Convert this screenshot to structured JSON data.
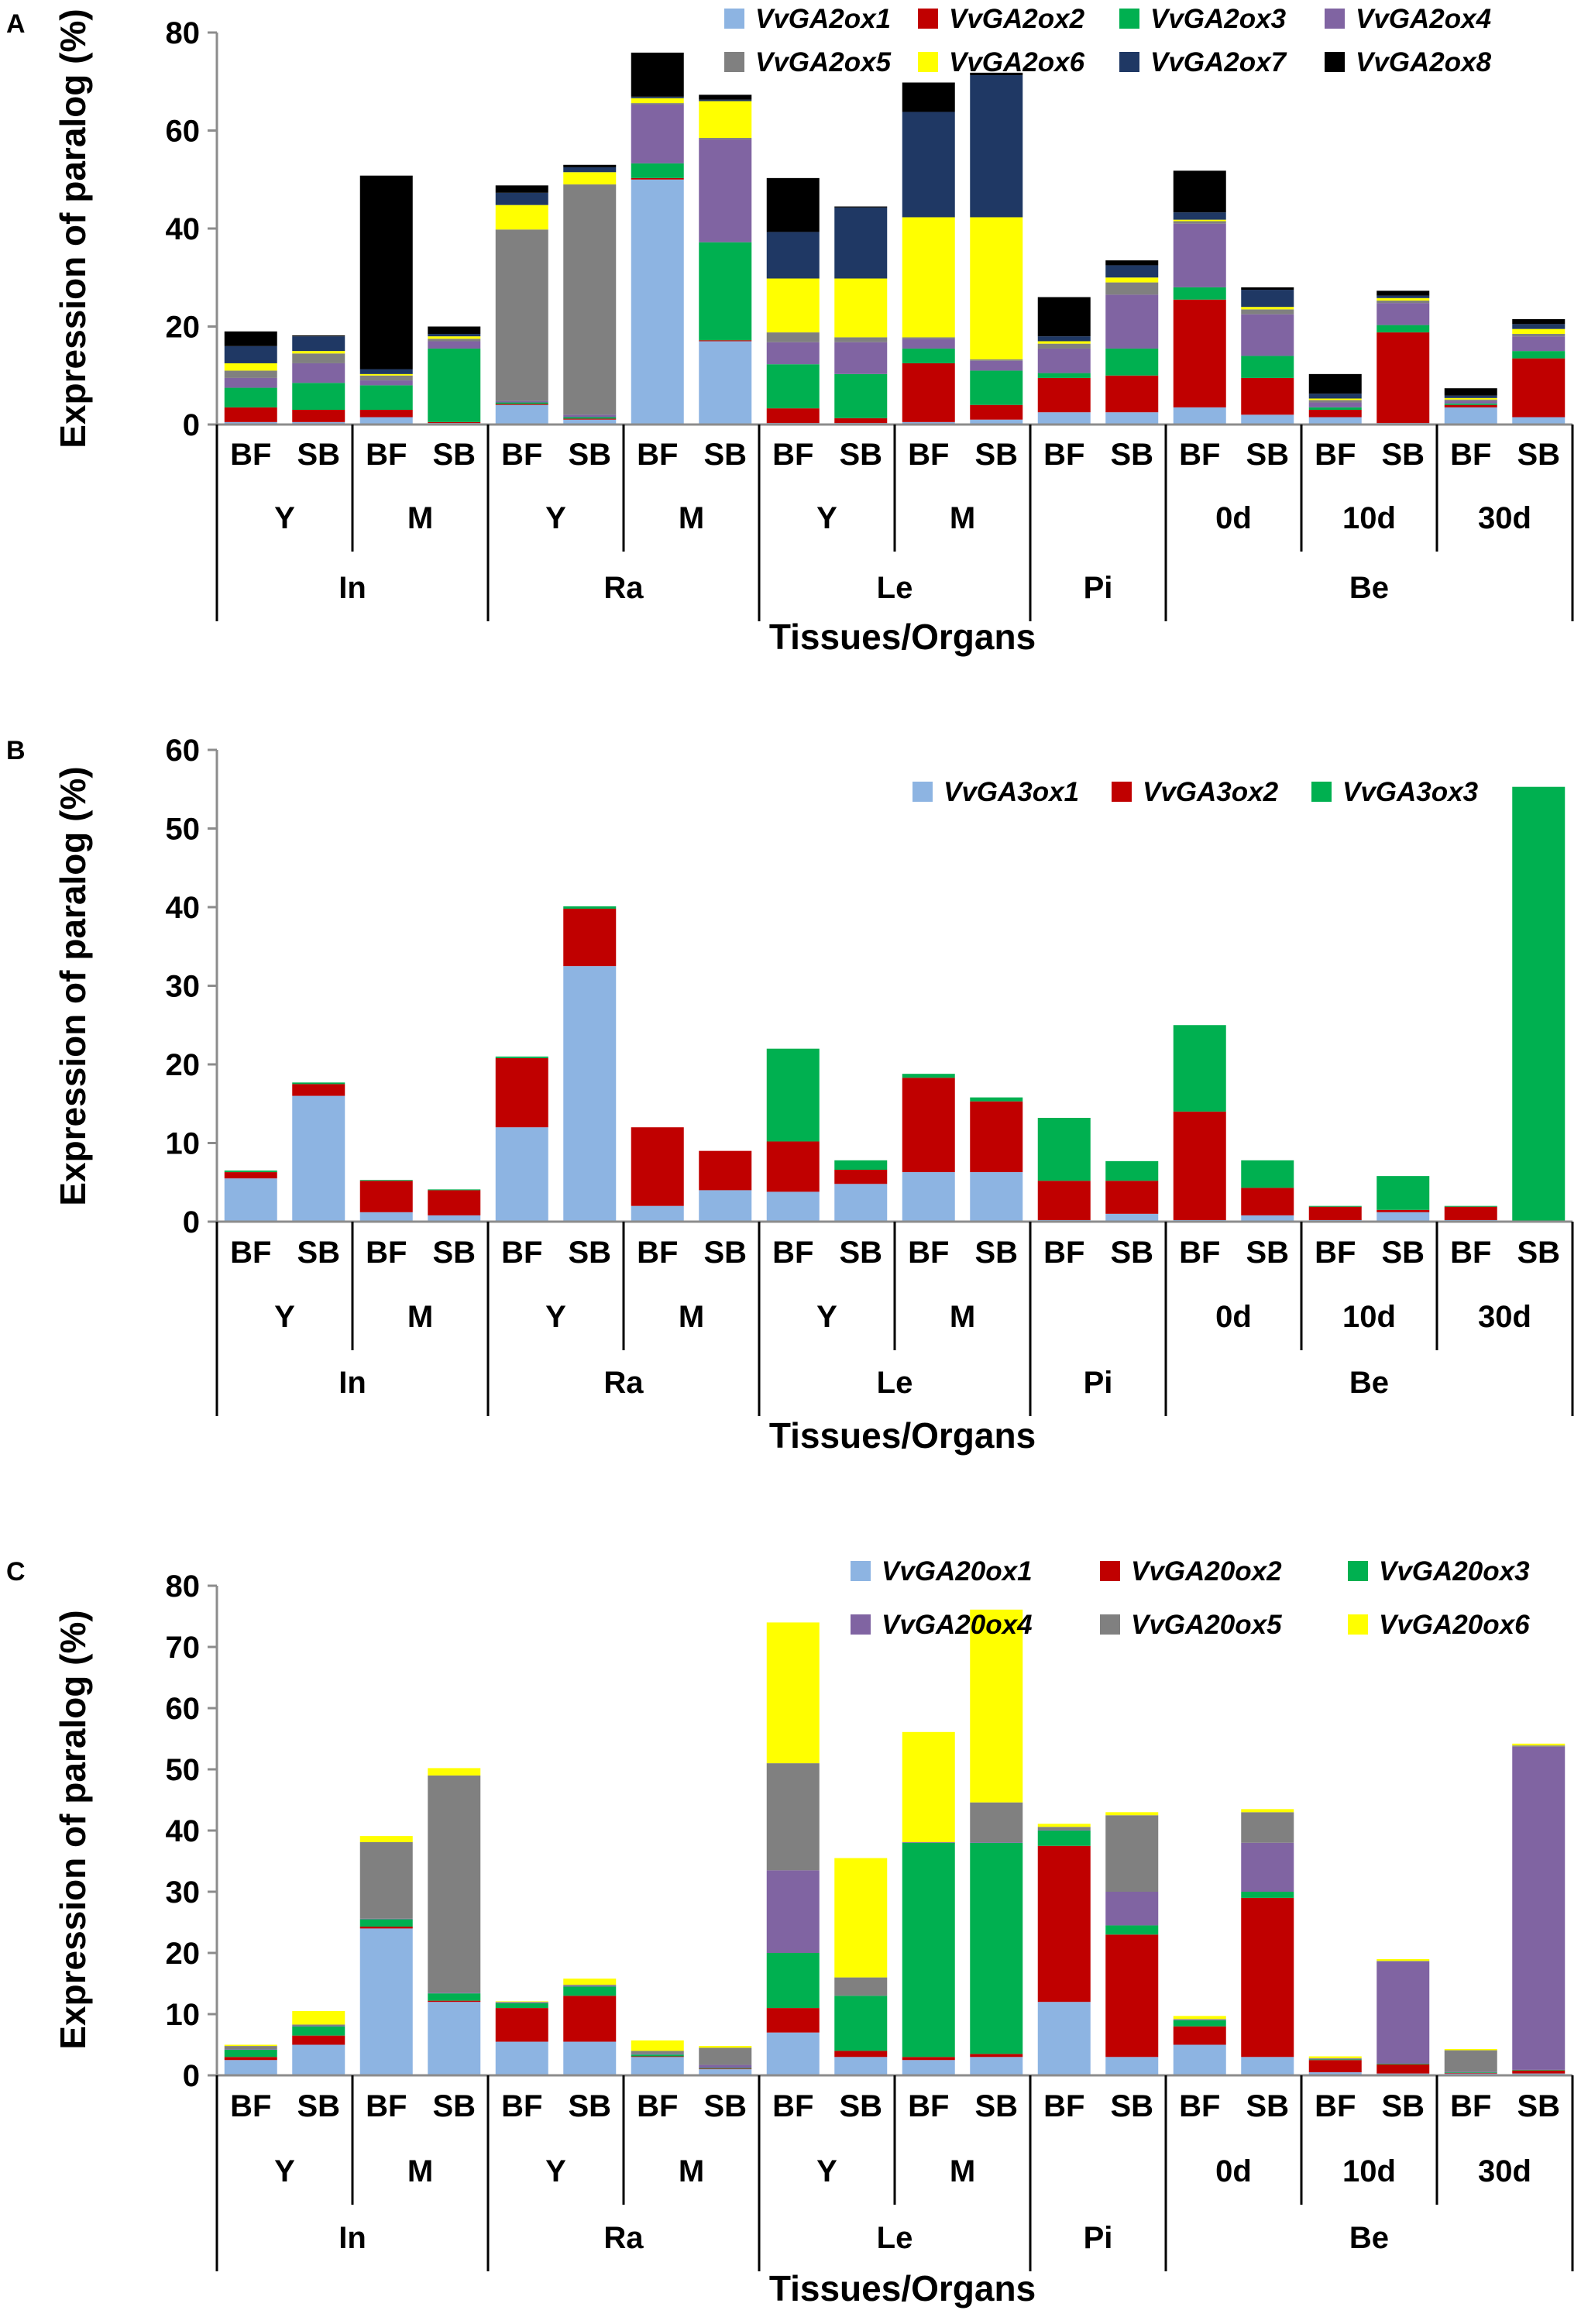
{
  "chart_data": [
    {
      "type": "bar",
      "stacked": true,
      "panel": "A",
      "ylabel": "Expression of paralog (%)",
      "xlabel": "Tissues/Organs",
      "ylim": [
        0,
        80
      ],
      "yticks": [
        0,
        20,
        40,
        60,
        80
      ],
      "legend_position": "top-right",
      "categories": [
        "BF",
        "SB",
        "BF",
        "SB",
        "BF",
        "SB",
        "BF",
        "SB",
        "BF",
        "SB",
        "BF",
        "SB",
        "BF",
        "SB",
        "BF",
        "SB",
        "BF",
        "SB",
        "BF",
        "SB"
      ],
      "stage_labels": [
        "Y",
        "M",
        "Y",
        "M",
        "Y",
        "M",
        "",
        "0d",
        "10d",
        "30d"
      ],
      "stage_spans": [
        [
          0,
          2
        ],
        [
          2,
          4
        ],
        [
          4,
          6
        ],
        [
          6,
          8
        ],
        [
          8,
          10
        ],
        [
          10,
          12
        ],
        [
          12,
          14
        ],
        [
          14,
          16
        ],
        [
          16,
          18
        ],
        [
          18,
          20
        ]
      ],
      "organ_labels": [
        "In",
        "Ra",
        "Le",
        "Pi",
        "Be"
      ],
      "organ_spans": [
        [
          0,
          4
        ],
        [
          4,
          8
        ],
        [
          8,
          12
        ],
        [
          12,
          14
        ],
        [
          14,
          20
        ]
      ],
      "series": [
        {
          "name": "VvGA2ox1",
          "color": "#8db4e2",
          "values": [
            0.5,
            0.5,
            1.5,
            0.3,
            4,
            1,
            50,
            17,
            0.3,
            0.3,
            0.5,
            1,
            2.5,
            2.5,
            3.5,
            2,
            1.5,
            0.3,
            3.5,
            1.5
          ]
        },
        {
          "name": "VvGA2ox2",
          "color": "#c00000",
          "values": [
            3,
            2.5,
            1.5,
            0.2,
            0.2,
            0.2,
            0.3,
            0.2,
            3,
            1,
            12,
            3,
            7,
            7.5,
            22,
            7.5,
            1.5,
            18.5,
            0.5,
            12
          ]
        },
        {
          "name": "VvGA2ox3",
          "color": "#00b050",
          "values": [
            4,
            5.5,
            5,
            15,
            0.3,
            0.3,
            3,
            20,
            9,
            9,
            3,
            7,
            1,
            5.5,
            2.5,
            4.5,
            0.5,
            1.5,
            0.3,
            1.5
          ]
        },
        {
          "name": "VvGA2ox4",
          "color": "#8064a2",
          "values": [
            2,
            4,
            1,
            1.5,
            0.3,
            0.5,
            12,
            21,
            4.5,
            6.5,
            2,
            2,
            5,
            11,
            13,
            8.5,
            1,
            4.5,
            0.5,
            3
          ]
        },
        {
          "name": "VvGA2ox5",
          "color": "#808080",
          "values": [
            1.5,
            2,
            1,
            0.5,
            35,
            47,
            0.3,
            0.3,
            2,
            1,
            0.3,
            0.3,
            1,
            2.5,
            0.5,
            1,
            0.5,
            0.5,
            0.3,
            0.5
          ]
        },
        {
          "name": "VvGA2ox6",
          "color": "#ffff00",
          "values": [
            1.5,
            0.5,
            0.3,
            0.5,
            5,
            2.5,
            1,
            7.5,
            11,
            12,
            24.5,
            29,
            0.5,
            1,
            0.3,
            0.5,
            0.3,
            0.5,
            0.3,
            1
          ]
        },
        {
          "name": "VvGA2ox7",
          "color": "#1f3864",
          "values": [
            3.5,
            3,
            1,
            0.5,
            2.5,
            1,
            0.3,
            0.3,
            9.5,
            14.5,
            21.5,
            29,
            1,
            2.5,
            1.5,
            3.5,
            1,
            0.5,
            0.5,
            1
          ]
        },
        {
          "name": "VvGA2ox8",
          "color": "#000000",
          "values": [
            3,
            0.2,
            39.5,
            1.5,
            1.5,
            0.5,
            9,
            1,
            11,
            0.2,
            6,
            0.5,
            8,
            1,
            8.5,
            0.5,
            4,
            1,
            1.5,
            1
          ]
        }
      ]
    },
    {
      "type": "bar",
      "stacked": true,
      "panel": "B",
      "ylabel": "Expression of paralog (%)",
      "xlabel": "Tissues/Organs",
      "ylim": [
        0,
        60
      ],
      "yticks": [
        0,
        10,
        20,
        30,
        40,
        50,
        60
      ],
      "legend_position": "top-right",
      "categories": [
        "BF",
        "SB",
        "BF",
        "SB",
        "BF",
        "SB",
        "BF",
        "SB",
        "BF",
        "SB",
        "BF",
        "SB",
        "BF",
        "SB",
        "BF",
        "SB",
        "BF",
        "SB",
        "BF",
        "SB"
      ],
      "stage_labels": [
        "Y",
        "M",
        "Y",
        "M",
        "Y",
        "M",
        "",
        "0d",
        "10d",
        "30d"
      ],
      "stage_spans": [
        [
          0,
          2
        ],
        [
          2,
          4
        ],
        [
          4,
          6
        ],
        [
          6,
          8
        ],
        [
          8,
          10
        ],
        [
          10,
          12
        ],
        [
          12,
          14
        ],
        [
          14,
          16
        ],
        [
          16,
          18
        ],
        [
          18,
          20
        ]
      ],
      "organ_labels": [
        "In",
        "Ra",
        "Le",
        "Pi",
        "Be"
      ],
      "organ_spans": [
        [
          0,
          4
        ],
        [
          4,
          8
        ],
        [
          8,
          12
        ],
        [
          12,
          14
        ],
        [
          14,
          20
        ]
      ],
      "series": [
        {
          "name": "VvGA3ox1",
          "color": "#8db4e2",
          "values": [
            5.5,
            16,
            1.2,
            0.8,
            12,
            32.5,
            2,
            4,
            3.8,
            4.8,
            6.3,
            6.3,
            0.2,
            1,
            0.2,
            0.8,
            0.2,
            1.2,
            0.2,
            0
          ]
        },
        {
          "name": "VvGA3ox2",
          "color": "#c00000",
          "values": [
            0.8,
            1.5,
            4,
            3.2,
            8.8,
            7.3,
            10,
            5,
            6.4,
            1.8,
            12,
            9,
            5,
            4.2,
            13.8,
            3.5,
            1.7,
            0.3,
            1.7,
            0
          ]
        },
        {
          "name": "VvGA3ox3",
          "color": "#00b050",
          "values": [
            0.2,
            0.2,
            0.1,
            0.1,
            0.2,
            0.3,
            0,
            0,
            11.8,
            1.2,
            0.5,
            0.5,
            8,
            2.5,
            11,
            3.5,
            0.1,
            4.3,
            0.1,
            55.3
          ]
        }
      ]
    },
    {
      "type": "bar",
      "stacked": true,
      "panel": "C",
      "ylabel": "Expression of paralog (%)",
      "xlabel": "Tissues/Organs",
      "ylim": [
        0,
        80
      ],
      "yticks": [
        0,
        10,
        20,
        30,
        40,
        50,
        60,
        70,
        80
      ],
      "legend_position": "top-right",
      "categories": [
        "BF",
        "SB",
        "BF",
        "SB",
        "BF",
        "SB",
        "BF",
        "SB",
        "BF",
        "SB",
        "BF",
        "SB",
        "BF",
        "SB",
        "BF",
        "SB",
        "BF",
        "SB",
        "BF",
        "SB"
      ],
      "stage_labels": [
        "Y",
        "M",
        "Y",
        "M",
        "Y",
        "M",
        "",
        "0d",
        "10d",
        "30d"
      ],
      "stage_spans": [
        [
          0,
          2
        ],
        [
          2,
          4
        ],
        [
          4,
          6
        ],
        [
          6,
          8
        ],
        [
          8,
          10
        ],
        [
          10,
          12
        ],
        [
          12,
          14
        ],
        [
          14,
          16
        ],
        [
          16,
          18
        ],
        [
          18,
          20
        ]
      ],
      "organ_labels": [
        "In",
        "Ra",
        "Le",
        "Pi",
        "Be"
      ],
      "organ_spans": [
        [
          0,
          4
        ],
        [
          4,
          8
        ],
        [
          8,
          12
        ],
        [
          12,
          14
        ],
        [
          14,
          20
        ]
      ],
      "series": [
        {
          "name": "VvGA20ox1",
          "color": "#8db4e2",
          "values": [
            2.5,
            5,
            24,
            12,
            5.5,
            5.5,
            3,
            1,
            7,
            3,
            2.5,
            3,
            12,
            3,
            5,
            3,
            0.5,
            0.3,
            0.3,
            0.3
          ]
        },
        {
          "name": "VvGA20ox2",
          "color": "#c00000",
          "values": [
            0.5,
            1.5,
            0.3,
            0.2,
            5.5,
            7.5,
            0.1,
            0.1,
            4,
            1,
            0.5,
            0.5,
            25.5,
            20,
            3,
            26,
            2,
            1.5,
            0.1,
            0.5
          ]
        },
        {
          "name": "VvGA20ox3",
          "color": "#00b050",
          "values": [
            1.2,
            1.5,
            1.2,
            1.2,
            0.8,
            1.5,
            0.3,
            0.1,
            9,
            9,
            35,
            34.5,
            2.5,
            1.5,
            1,
            1,
            0.1,
            0.1,
            0.1,
            0.1
          ]
        },
        {
          "name": "VvGA20ox4",
          "color": "#8064a2",
          "values": [
            0.1,
            0.1,
            0.1,
            0.1,
            0.1,
            0.1,
            0.1,
            0.5,
            13.5,
            0,
            0.1,
            0.1,
            0.1,
            5.5,
            0.1,
            8,
            0.1,
            16.7,
            0.1,
            52.8
          ]
        },
        {
          "name": "VvGA20ox5",
          "color": "#808080",
          "values": [
            0.5,
            0.2,
            12.5,
            35.5,
            0.1,
            0.2,
            0.5,
            2.8,
            17.5,
            3,
            0,
            6.5,
            0.5,
            12.5,
            0.1,
            5,
            0.1,
            0.1,
            3.5,
            0.2
          ]
        },
        {
          "name": "VvGA20ox6",
          "color": "#ffff00",
          "values": [
            0.2,
            2.2,
            1,
            1.2,
            0.1,
            1,
            1.7,
            0.3,
            23,
            19.5,
            18,
            31.5,
            0.5,
            0.5,
            0.5,
            0.5,
            0.3,
            0.3,
            0.2,
            0.3
          ]
        }
      ]
    }
  ]
}
